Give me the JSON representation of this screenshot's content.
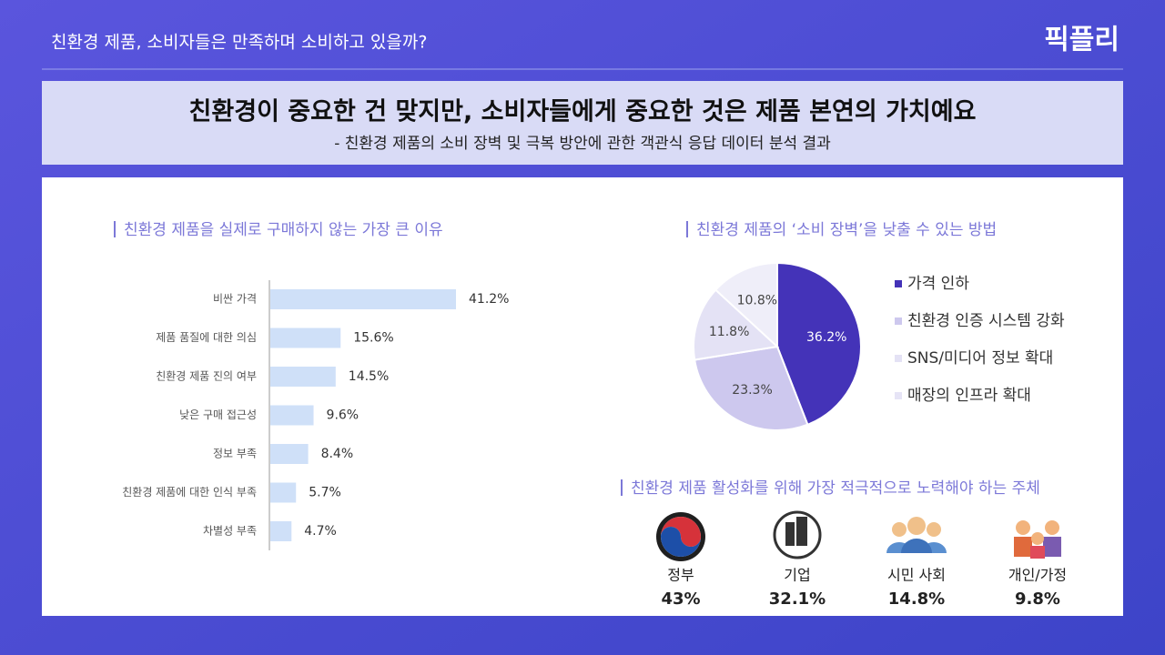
{
  "header": {
    "title": "친환경 제품, 소비자들은 만족하며 소비하고 있을까?",
    "logo": "픽플리"
  },
  "headline": {
    "title": "친환경이 중요한 건 맞지만, 소비자들에게 중요한 것은 제품 본연의 가치예요",
    "subtitle": "- 친환경 제품의 소비 장벽 및 극복 방안에 관한 객관식 응답 데이터 분석 결과"
  },
  "chart_data": [
    {
      "type": "bar",
      "title": "친환경 제품을 실제로 구매하지 않는 가장 큰 이유",
      "orientation": "horizontal",
      "categories": [
        "비싼 가격",
        "제품 품질에 대한 의심",
        "친환경 제품 진의 여부",
        "낮은 구매 접근성",
        "정보 부족",
        "친환경 제품에 대한 인식 부족",
        "차별성 부족"
      ],
      "values": [
        41.2,
        15.6,
        14.5,
        9.6,
        8.4,
        5.7,
        4.7
      ],
      "value_labels": [
        "41.2%",
        "15.6%",
        "14.5%",
        "9.6%",
        "8.4%",
        "5.7%",
        "4.7%"
      ],
      "color": "#cfe0f8"
    },
    {
      "type": "pie",
      "title": "친환경 제품의 ‘소비 장벽’을 낮출 수 있는 방법",
      "categories": [
        "가격 인하",
        "친환경 인증 시스템 강화",
        "SNS/미디어 정보 확대",
        "매장의 인프라 확대"
      ],
      "values": [
        36.2,
        23.3,
        11.8,
        10.8
      ],
      "value_labels": [
        "36.2%",
        "23.3%",
        "11.8%",
        "10.8%"
      ],
      "colors": [
        "#4433b8",
        "#cdc8ee",
        "#e4e2f5",
        "#efeef9"
      ]
    }
  ],
  "actors": {
    "title": "친환경 제품 활성화를 위해 가장 적극적으로 노력해야 하는 주체",
    "items": [
      {
        "name": "정부",
        "value": "43%"
      },
      {
        "name": "기업",
        "value": "32.1%"
      },
      {
        "name": "시민 사회",
        "value": "14.8%"
      },
      {
        "name": "개인/가정",
        "value": "9.8%"
      }
    ]
  }
}
